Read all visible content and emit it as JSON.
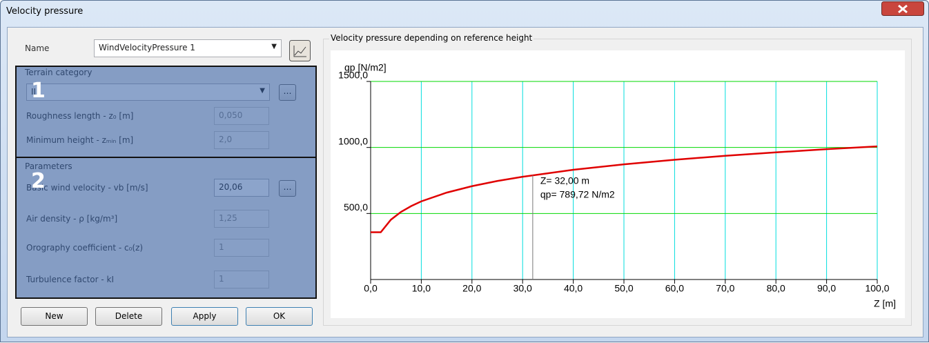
{
  "window": {
    "title": "Velocity pressure"
  },
  "form": {
    "name_label": "Name",
    "name_value": "WindVelocityPressure 1"
  },
  "terrain": {
    "title": "Terrain category",
    "marker": "1",
    "category": "II",
    "rows": [
      {
        "label": "Roughness length - z₀ [m]",
        "value": "0,050"
      },
      {
        "label": "Minimum height - zₘᵢₙ [m]",
        "value": "2,0"
      }
    ]
  },
  "parameters": {
    "title": "Parameters",
    "marker": "2",
    "rows": [
      {
        "label": "Basic wind velocity - vb [m/s]",
        "value": "20,06"
      },
      {
        "label": "Air density - ρ [kg/m³]",
        "value": "1,25"
      },
      {
        "label": "Orography coefficient - c₀(z)",
        "value": "1"
      },
      {
        "label": "Turbulence factor - kI",
        "value": "1"
      }
    ]
  },
  "buttons": [
    "New",
    "Delete",
    "Apply",
    "OK"
  ],
  "chart_panel": {
    "title": "Velocity pressure depending on reference height"
  },
  "chart_data": {
    "type": "line",
    "y_label": "qp [N/m2]",
    "x_label": "Z [m]",
    "x": [
      0,
      2,
      4,
      6,
      8,
      10,
      15,
      20,
      25,
      30,
      40,
      50,
      60,
      70,
      80,
      90,
      100
    ],
    "values": [
      358,
      358,
      453,
      512,
      556,
      592,
      658,
      707,
      746,
      778,
      831,
      872,
      907,
      937,
      963,
      987,
      1008
    ],
    "color": "#e00000",
    "xlim": [
      0,
      100
    ],
    "ylim": [
      0,
      1500
    ],
    "xticks": [
      {
        "value": 0,
        "label": "0,0"
      },
      {
        "value": 10,
        "label": "10,0"
      },
      {
        "value": 20,
        "label": "20,0"
      },
      {
        "value": 30,
        "label": "30,0"
      },
      {
        "value": 40,
        "label": "40,0"
      },
      {
        "value": 50,
        "label": "50,0"
      },
      {
        "value": 60,
        "label": "60,0"
      },
      {
        "value": 70,
        "label": "70,0"
      },
      {
        "value": 80,
        "label": "80,0"
      },
      {
        "value": 90,
        "label": "90,0"
      },
      {
        "value": 100,
        "label": "100,0"
      }
    ],
    "yticks": [
      {
        "value": 500,
        "label": "500,0"
      },
      {
        "value": 1000,
        "label": "1000,0"
      },
      {
        "value": 1500,
        "label": "1500,0"
      }
    ],
    "grid": true,
    "cursor": {
      "x": 32,
      "y": 789.72
    },
    "annotations": [
      "Z= 32,00 m",
      "qp= 789,72 N/m2"
    ]
  }
}
